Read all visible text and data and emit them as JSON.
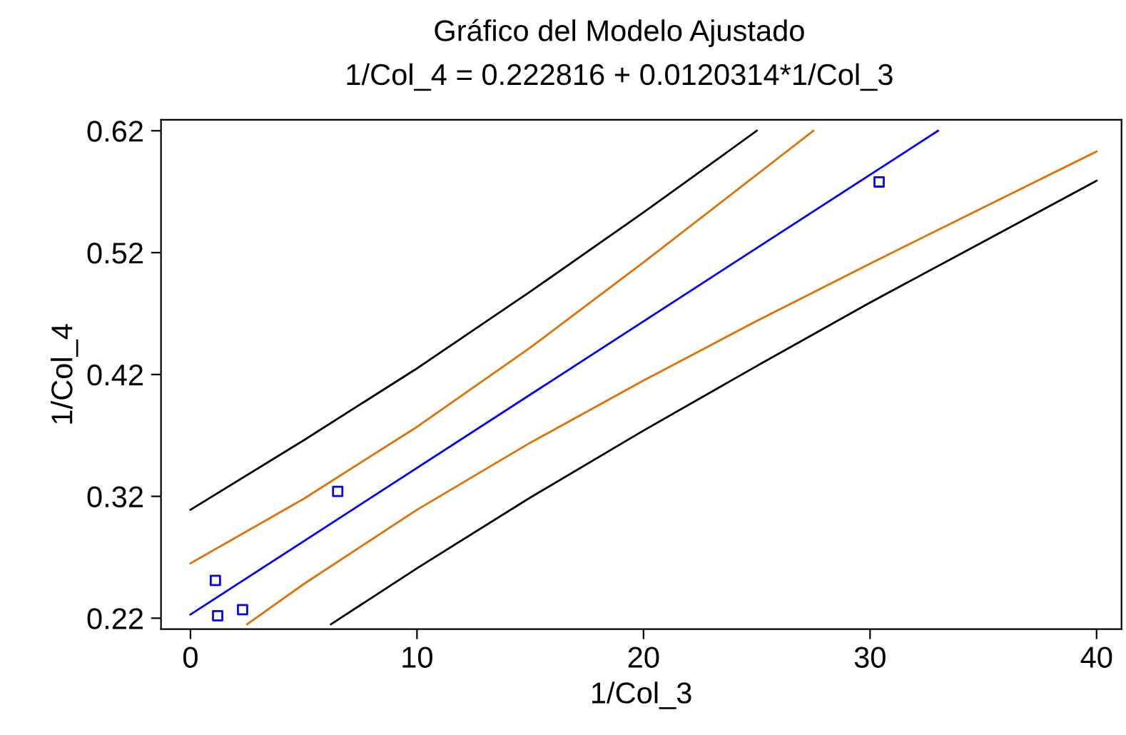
{
  "chart_data": {
    "type": "line",
    "title": "Gráfico del Modelo Ajustado",
    "subtitle": "1/Col_4 = 0.222816 + 0.0120314*1/Col_3",
    "xlabel": "1/Col_3",
    "ylabel": "1/Col_4",
    "xlim": [
      -1.3,
      41.1
    ],
    "ylim": [
      0.211,
      0.629
    ],
    "xticks": [
      0,
      10,
      20,
      30,
      40
    ],
    "yticks": [
      0.22,
      0.32,
      0.42,
      0.52,
      0.62
    ],
    "grid": false,
    "legend": false,
    "series": [
      {
        "type": "scatter",
        "marker": "square",
        "color": "#0000ff",
        "x": [
          1.1,
          1.2,
          2.3,
          6.5,
          30.4
        ],
        "values": [
          0.251,
          0.222,
          0.227,
          0.324,
          0.578
        ]
      },
      {
        "color": "#0000ff",
        "x": [
          0,
          33
        ],
        "values": [
          0.223,
          0.62
        ]
      },
      {
        "color": "#e07000",
        "x": [
          0,
          5,
          10,
          15,
          20,
          25,
          27.5
        ],
        "values": [
          0.265,
          0.318,
          0.377,
          0.442,
          0.512,
          0.584,
          0.62
        ]
      },
      {
        "color": "#e07000",
        "x": [
          2.5,
          5,
          10,
          15,
          20,
          25,
          30,
          35,
          40
        ],
        "values": [
          0.215,
          0.248,
          0.309,
          0.364,
          0.415,
          0.464,
          0.511,
          0.557,
          0.603
        ]
      },
      {
        "color": "#000000",
        "x": [
          0,
          5,
          10,
          15,
          20,
          25
        ],
        "values": [
          0.309,
          0.366,
          0.425,
          0.488,
          0.553,
          0.62
        ]
      },
      {
        "color": "#000000",
        "x": [
          6.2,
          10,
          15,
          20,
          25,
          30,
          35,
          40
        ],
        "values": [
          0.215,
          0.261,
          0.319,
          0.374,
          0.427,
          0.479,
          0.529,
          0.579
        ]
      }
    ]
  }
}
